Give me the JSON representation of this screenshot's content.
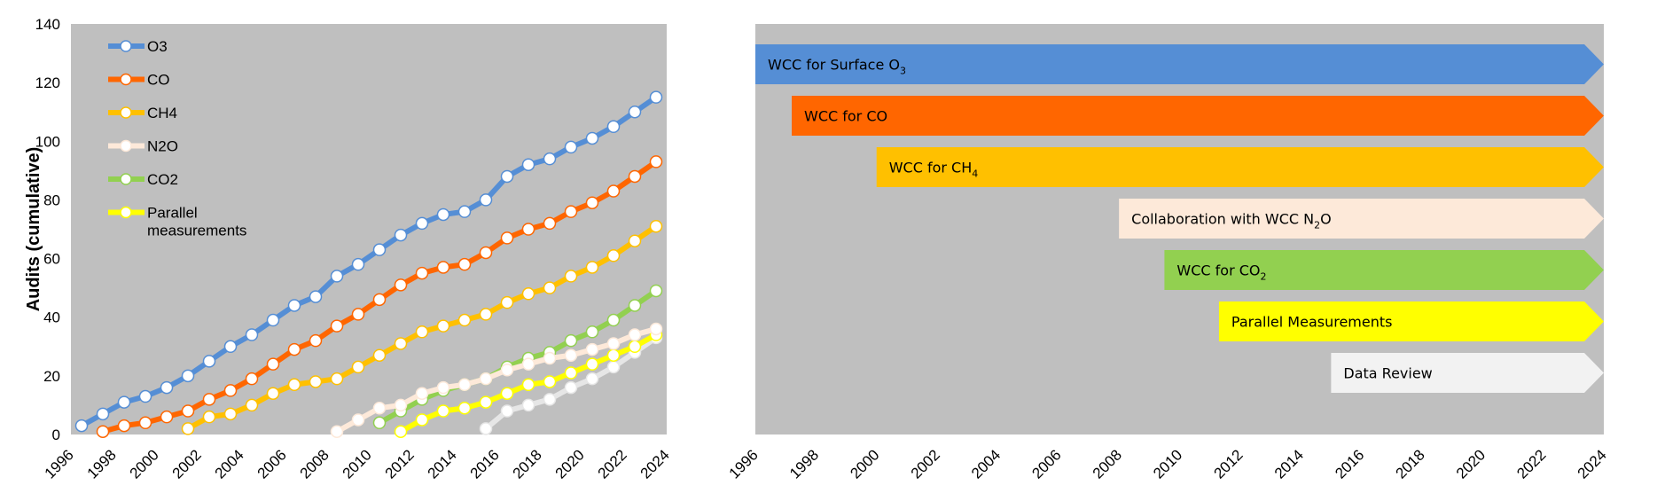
{
  "chart_data": [
    {
      "type": "line",
      "ylabel": "Audits (cumulative)",
      "ylim": [
        0,
        140
      ],
      "yticks": [
        0,
        20,
        40,
        60,
        80,
        100,
        120,
        140
      ],
      "xlim": [
        1996,
        2024
      ],
      "xticks": [
        1996,
        1998,
        2000,
        2002,
        2004,
        2006,
        2008,
        2010,
        2012,
        2014,
        2016,
        2018,
        2020,
        2022,
        2024
      ],
      "grid": false,
      "legend_position": "top-left",
      "background": "#BFBFBF",
      "series": [
        {
          "name": "O3",
          "color": "#558ED5",
          "start_year": 1996,
          "values": [
            3,
            7,
            11,
            13,
            16,
            20,
            25,
            30,
            34,
            39,
            44,
            47,
            54,
            58,
            63,
            68,
            72,
            75,
            76,
            80,
            88,
            92,
            94,
            98,
            101,
            105,
            110,
            115
          ]
        },
        {
          "name": "CO",
          "color": "#FF6600",
          "start_year": 1997,
          "values": [
            1,
            3,
            4,
            6,
            8,
            12,
            15,
            19,
            24,
            29,
            32,
            37,
            41,
            46,
            51,
            55,
            57,
            58,
            62,
            67,
            70,
            72,
            76,
            79,
            83,
            88,
            93
          ]
        },
        {
          "name": "CH4",
          "color": "#FFC000",
          "start_year": 2001,
          "values": [
            2,
            6,
            7,
            10,
            14,
            17,
            18,
            19,
            23,
            27,
            31,
            35,
            37,
            39,
            41,
            45,
            48,
            50,
            54,
            57,
            61,
            66,
            71
          ]
        },
        {
          "name": "N2O",
          "color": "#FDE9D9",
          "start_year": 2008,
          "values": [
            1,
            5,
            9,
            10,
            14,
            16,
            17,
            19,
            22,
            24,
            26,
            27,
            29,
            31,
            34,
            36
          ]
        },
        {
          "name": "CO2",
          "color": "#92D050",
          "start_year": 2010,
          "values": [
            4,
            8,
            12,
            15,
            17,
            19,
            23,
            26,
            28,
            32,
            35,
            39,
            44,
            49
          ]
        },
        {
          "name": "Parallel measurements",
          "color": "#FFFF00",
          "start_year": 2011,
          "values": [
            1,
            5,
            8,
            9,
            11,
            14,
            17,
            18,
            21,
            24,
            27,
            30,
            34
          ]
        },
        {
          "color": "#E6E6E6",
          "start_year": 2015,
          "values": [
            2,
            8,
            10,
            12,
            16,
            19,
            23,
            28,
            33
          ]
        }
      ]
    },
    {
      "type": "bar",
      "orientation": "horizontal-timeline",
      "xlim": [
        1996,
        2024
      ],
      "xticks": [
        1996,
        1998,
        2000,
        2002,
        2004,
        2006,
        2008,
        2010,
        2012,
        2014,
        2016,
        2018,
        2020,
        2022,
        2024
      ],
      "background": "#BFBFBF",
      "bars": [
        {
          "label": "WCC for Surface O",
          "sub": "3",
          "start": 1996,
          "end": 2024,
          "color": "#558ED5"
        },
        {
          "label": "WCC for CO",
          "sub": "",
          "start": 1997.2,
          "end": 2024,
          "color": "#FF6600"
        },
        {
          "label": "WCC for CH",
          "sub": "4",
          "start": 2000,
          "end": 2024,
          "color": "#FFC000"
        },
        {
          "label": "Collaboration with WCC N",
          "sub": "2",
          "suffix": "O",
          "start": 2008,
          "end": 2024,
          "color": "#FDE9D9"
        },
        {
          "label": "WCC for CO",
          "sub": "2",
          "start": 2009.5,
          "end": 2024,
          "color": "#92D050"
        },
        {
          "label": "Parallel Measurements",
          "sub": "",
          "start": 2011.3,
          "end": 2024,
          "color": "#FFFF00"
        },
        {
          "label": "Data Review",
          "sub": "",
          "start": 2015,
          "end": 2024,
          "color": "#F2F2F2"
        }
      ]
    }
  ]
}
